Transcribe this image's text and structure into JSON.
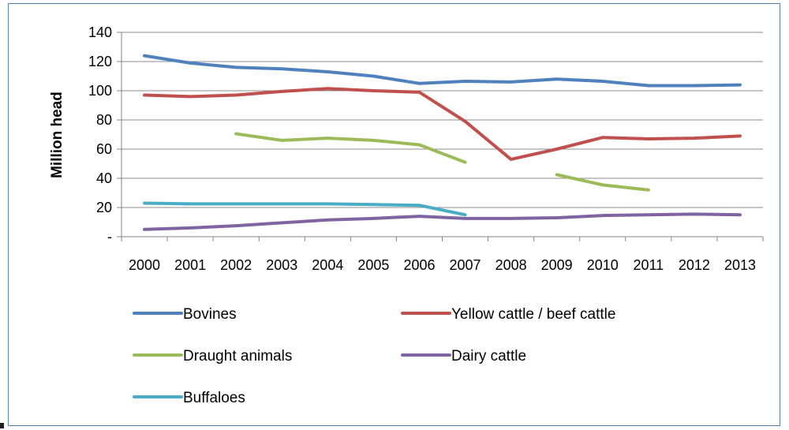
{
  "chart_data": {
    "type": "line",
    "xlabel": "",
    "ylabel": "Million head",
    "ylim": [
      0,
      140
    ],
    "y_ticks": [
      "-",
      "20",
      "40",
      "60",
      "80",
      "100",
      "120",
      "140"
    ],
    "categories": [
      "2000",
      "2001",
      "2002",
      "2003",
      "2004",
      "2005",
      "2006",
      "2007",
      "2008",
      "2009",
      "2010",
      "2011",
      "2012",
      "2013"
    ],
    "grid": true,
    "legend_position": "bottom",
    "series": [
      {
        "name": "Bovines",
        "color": "#4f81bd",
        "values": [
          124,
          119,
          116,
          115,
          113,
          110,
          105,
          106.5,
          106,
          108,
          106.5,
          103.5,
          103.5,
          104
        ]
      },
      {
        "name": "Yellow cattle / beef cattle",
        "color": "#c0504d",
        "values": [
          97,
          96,
          97,
          99.5,
          101.5,
          100,
          99,
          79,
          53,
          60,
          68,
          67,
          67.5,
          69
        ]
      },
      {
        "name": "Draught animals",
        "color": "#9bbb59",
        "values": [
          null,
          null,
          70.5,
          66,
          67.5,
          66,
          63,
          51,
          null,
          42.5,
          35.5,
          32,
          null,
          null
        ]
      },
      {
        "name": "Dairy cattle",
        "color": "#8064a2",
        "values": [
          5,
          6,
          7.5,
          9.5,
          11.5,
          12.5,
          14,
          12.5,
          12.5,
          13,
          14.5,
          15,
          15.5,
          15
        ]
      },
      {
        "name": "Buffaloes",
        "color": "#4bacc6",
        "values": [
          23,
          22.5,
          22.5,
          22.5,
          22.5,
          22,
          21.5,
          15,
          null,
          null,
          null,
          null,
          null,
          null
        ]
      }
    ]
  }
}
